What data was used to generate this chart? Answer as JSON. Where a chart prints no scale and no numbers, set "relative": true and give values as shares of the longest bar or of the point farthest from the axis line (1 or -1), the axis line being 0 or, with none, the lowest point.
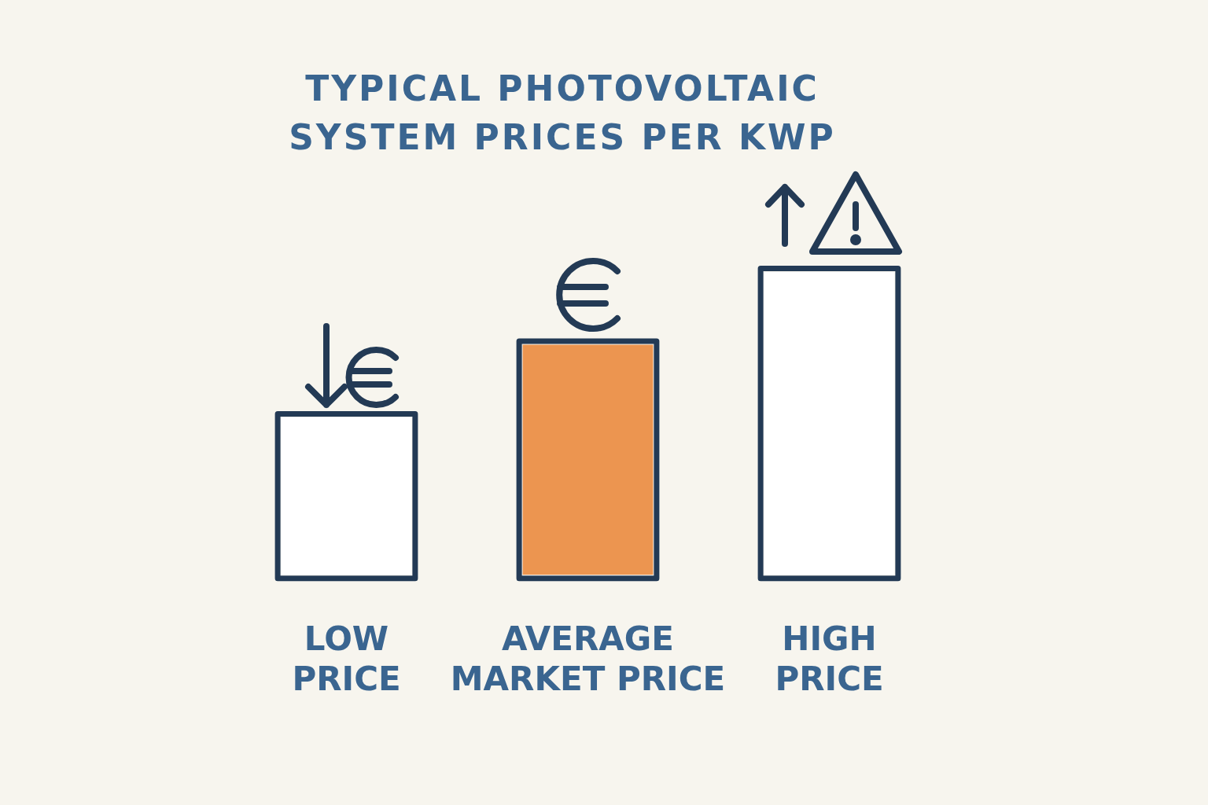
{
  "chart_data": {
    "type": "bar",
    "title": "TYPICAL PHOTOVOLTAIC SYSTEM PRICES PER KWP",
    "categories": [
      "LOW PRICE",
      "AVERAGE MARKET PRICE",
      "HIGH PRICE"
    ],
    "values": [
      0.52,
      0.76,
      1
    ],
    "colors": [
      "#ffffff",
      "#ec9550",
      "#ffffff"
    ],
    "relative": true
  }
}
